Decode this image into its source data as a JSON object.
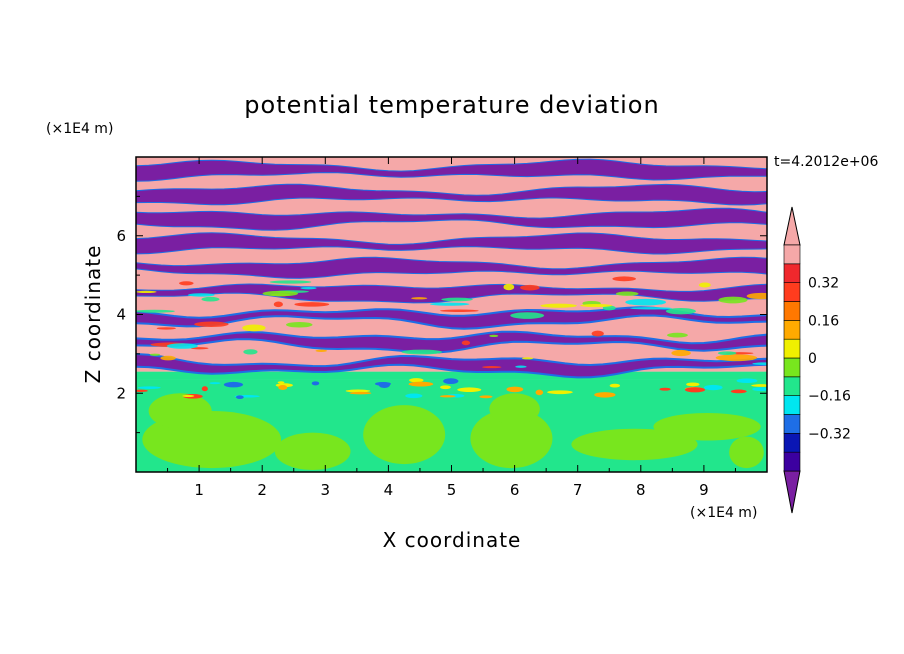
{
  "chart_data": {
    "type": "heatmap",
    "title": "potential temperature deviation",
    "xlabel": "X coordinate",
    "ylabel": "Z coordinate",
    "x_unit": "(×1E4 m)",
    "y_unit": "(×1E4 m)",
    "time_label": "t=4.2012e+06",
    "xlim": [
      0,
      10
    ],
    "ylim": [
      0,
      8
    ],
    "x_ticks": [
      {
        "value": 1,
        "label": "1"
      },
      {
        "value": 2,
        "label": "2"
      },
      {
        "value": 3,
        "label": "3"
      },
      {
        "value": 4,
        "label": "4"
      },
      {
        "value": 5,
        "label": "5"
      },
      {
        "value": 6,
        "label": "6"
      },
      {
        "value": 7,
        "label": "7"
      },
      {
        "value": 8,
        "label": "8"
      },
      {
        "value": 9,
        "label": "9"
      }
    ],
    "y_ticks": [
      {
        "value": 2,
        "label": "2"
      },
      {
        "value": 4,
        "label": "4"
      },
      {
        "value": 6,
        "label": "6"
      }
    ],
    "colorbar": {
      "levels": [
        -0.48,
        -0.4,
        -0.32,
        -0.24,
        -0.16,
        -0.08,
        0,
        0.08,
        0.16,
        0.24,
        0.32,
        0.4,
        0.48
      ],
      "colors": [
        "#7a1fa2",
        "#3c00a0",
        "#0a16b4",
        "#1e6ee6",
        "#00e6f0",
        "#22e68c",
        "#78e61e",
        "#f0f000",
        "#ffaa00",
        "#ff7800",
        "#ff3c1e",
        "#f0282d",
        "#f5a8a8"
      ],
      "extend": "both",
      "labels": [
        {
          "value": 0.32,
          "label": "0.32"
        },
        {
          "value": 0.16,
          "label": "0.16"
        },
        {
          "value": 0,
          "label": "0"
        },
        {
          "value": -0.16,
          "label": "−0.16"
        },
        {
          "value": -0.32,
          "label": "−0.32"
        }
      ]
    },
    "regions": [
      {
        "z_range": [
          0,
          2.35
        ],
        "description_value_range": [
          0,
          0.08
        ],
        "secondary_value_range": [
          -0.08,
          0
        ]
      },
      {
        "z_range": [
          2.35,
          2.55
        ],
        "value_range": [
          -0.08,
          0
        ]
      },
      {
        "z_range": [
          2.55,
          8
        ],
        "band_values": [
          "<-0.48",
          ">0.48"
        ],
        "band_thickness": 0.32
      }
    ]
  }
}
